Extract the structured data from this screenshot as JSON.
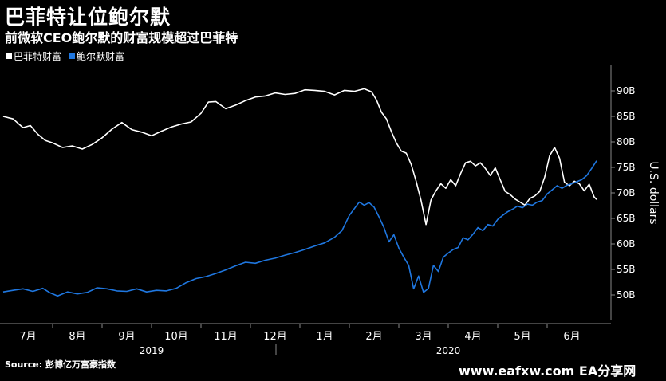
{
  "header": {
    "title": "巴菲特让位鲍尔默",
    "subtitle": "前微软CEO鲍尔默的财富规模超过巴菲特"
  },
  "legend": [
    {
      "label": "巴菲特财富",
      "color": "#ffffff"
    },
    {
      "label": "鲍尔默财富",
      "color": "#1f77e0"
    }
  ],
  "footer": {
    "source": "Source: 彭博亿万富豪指数",
    "watermark": "www.eafxw.com   EA分享网"
  },
  "chart_data": {
    "type": "line",
    "ylabel": "U.S. dollars",
    "ylim": [
      45,
      95
    ],
    "yticks": [
      50,
      55,
      60,
      65,
      70,
      75,
      80,
      85,
      90
    ],
    "ytick_labels": [
      "50B",
      "55B",
      "60B",
      "65B",
      "70B",
      "75B",
      "80B",
      "85B",
      "90B"
    ],
    "xlim": [
      0,
      12.0
    ],
    "month_labels": [
      "7月",
      "8月",
      "9月",
      "10月",
      "11月",
      "12月",
      "1月",
      "2月",
      "3月",
      "4月",
      "5月",
      "6月"
    ],
    "year_labels": [
      {
        "label": "2019",
        "at": 3.0
      },
      {
        "label": "2020",
        "at": 9.0
      }
    ],
    "series": [
      {
        "name": "巴菲特财富",
        "color": "#ffffff",
        "points": [
          [
            0.0,
            85
          ],
          [
            0.2,
            84.5
          ],
          [
            0.4,
            82.8
          ],
          [
            0.55,
            83.2
          ],
          [
            0.7,
            81.5
          ],
          [
            0.85,
            80.3
          ],
          [
            1.0,
            79.8
          ],
          [
            1.2,
            78.9
          ],
          [
            1.4,
            79.2
          ],
          [
            1.6,
            78.6
          ],
          [
            1.8,
            79.5
          ],
          [
            2.0,
            80.8
          ],
          [
            2.2,
            82.5
          ],
          [
            2.4,
            83.8
          ],
          [
            2.6,
            82.4
          ],
          [
            2.8,
            81.9
          ],
          [
            3.0,
            81.2
          ],
          [
            3.2,
            82.1
          ],
          [
            3.4,
            82.9
          ],
          [
            3.6,
            83.5
          ],
          [
            3.8,
            83.9
          ],
          [
            4.0,
            85.6
          ],
          [
            4.15,
            87.8
          ],
          [
            4.3,
            87.9
          ],
          [
            4.5,
            86.5
          ],
          [
            4.7,
            87.2
          ],
          [
            4.9,
            88.1
          ],
          [
            5.1,
            88.8
          ],
          [
            5.3,
            89.0
          ],
          [
            5.5,
            89.6
          ],
          [
            5.7,
            89.3
          ],
          [
            5.9,
            89.5
          ],
          [
            6.1,
            90.2
          ],
          [
            6.3,
            90.1
          ],
          [
            6.5,
            89.9
          ],
          [
            6.7,
            89.2
          ],
          [
            6.9,
            90.1
          ],
          [
            7.1,
            89.9
          ],
          [
            7.3,
            90.4
          ],
          [
            7.45,
            89.8
          ],
          [
            7.55,
            88.2
          ],
          [
            7.65,
            85.8
          ],
          [
            7.75,
            84.5
          ],
          [
            7.85,
            82.0
          ],
          [
            7.95,
            79.8
          ],
          [
            8.05,
            78.2
          ],
          [
            8.15,
            77.8
          ],
          [
            8.25,
            75.6
          ],
          [
            8.35,
            72.3
          ],
          [
            8.45,
            68.5
          ],
          [
            8.55,
            63.8
          ],
          [
            8.65,
            68.6
          ],
          [
            8.75,
            70.4
          ],
          [
            8.85,
            71.8
          ],
          [
            8.95,
            70.9
          ],
          [
            9.05,
            72.6
          ],
          [
            9.15,
            71.4
          ],
          [
            9.25,
            73.8
          ],
          [
            9.35,
            75.9
          ],
          [
            9.45,
            76.2
          ],
          [
            9.55,
            75.3
          ],
          [
            9.65,
            75.9
          ],
          [
            9.75,
            74.8
          ],
          [
            9.85,
            73.4
          ],
          [
            9.95,
            74.9
          ],
          [
            10.05,
            72.6
          ],
          [
            10.15,
            70.3
          ],
          [
            10.25,
            69.7
          ],
          [
            10.35,
            68.8
          ],
          [
            10.45,
            68.2
          ],
          [
            10.55,
            67.6
          ],
          [
            10.65,
            68.9
          ],
          [
            10.75,
            69.4
          ],
          [
            10.85,
            70.3
          ],
          [
            10.95,
            73.1
          ],
          [
            11.05,
            77.3
          ],
          [
            11.15,
            78.9
          ],
          [
            11.25,
            76.8
          ],
          [
            11.35,
            72.1
          ],
          [
            11.45,
            71.4
          ],
          [
            11.55,
            72.3
          ],
          [
            11.65,
            71.8
          ],
          [
            11.75,
            70.4
          ],
          [
            11.85,
            71.7
          ],
          [
            11.95,
            69.2
          ],
          [
            12.0,
            68.7
          ]
        ]
      },
      {
        "name": "鲍尔默财富",
        "color": "#1f77e0",
        "points": [
          [
            0.0,
            50.6
          ],
          [
            0.2,
            50.9
          ],
          [
            0.4,
            51.2
          ],
          [
            0.6,
            50.7
          ],
          [
            0.8,
            51.3
          ],
          [
            0.95,
            50.4
          ],
          [
            1.1,
            49.8
          ],
          [
            1.3,
            50.6
          ],
          [
            1.5,
            50.2
          ],
          [
            1.7,
            50.5
          ],
          [
            1.9,
            51.4
          ],
          [
            2.1,
            51.2
          ],
          [
            2.3,
            50.8
          ],
          [
            2.5,
            50.7
          ],
          [
            2.7,
            51.2
          ],
          [
            2.9,
            50.6
          ],
          [
            3.1,
            50.9
          ],
          [
            3.3,
            50.8
          ],
          [
            3.5,
            51.3
          ],
          [
            3.7,
            52.4
          ],
          [
            3.9,
            53.2
          ],
          [
            4.1,
            53.6
          ],
          [
            4.3,
            54.2
          ],
          [
            4.5,
            54.9
          ],
          [
            4.7,
            55.7
          ],
          [
            4.9,
            56.4
          ],
          [
            5.1,
            56.2
          ],
          [
            5.3,
            56.8
          ],
          [
            5.5,
            57.2
          ],
          [
            5.7,
            57.8
          ],
          [
            5.9,
            58.3
          ],
          [
            6.1,
            58.9
          ],
          [
            6.3,
            59.6
          ],
          [
            6.5,
            60.2
          ],
          [
            6.7,
            61.3
          ],
          [
            6.85,
            62.6
          ],
          [
            7.0,
            65.6
          ],
          [
            7.1,
            66.9
          ],
          [
            7.2,
            68.2
          ],
          [
            7.3,
            67.6
          ],
          [
            7.4,
            68.1
          ],
          [
            7.5,
            67.2
          ],
          [
            7.6,
            65.3
          ],
          [
            7.7,
            63.2
          ],
          [
            7.8,
            60.4
          ],
          [
            7.9,
            61.8
          ],
          [
            8.0,
            59.2
          ],
          [
            8.1,
            57.4
          ],
          [
            8.2,
            55.8
          ],
          [
            8.3,
            51.2
          ],
          [
            8.4,
            53.7
          ],
          [
            8.5,
            50.5
          ],
          [
            8.6,
            51.3
          ],
          [
            8.7,
            55.8
          ],
          [
            8.8,
            54.6
          ],
          [
            8.9,
            57.4
          ],
          [
            9.0,
            58.2
          ],
          [
            9.1,
            58.9
          ],
          [
            9.2,
            59.3
          ],
          [
            9.3,
            61.2
          ],
          [
            9.4,
            60.8
          ],
          [
            9.5,
            61.9
          ],
          [
            9.6,
            63.2
          ],
          [
            9.7,
            62.6
          ],
          [
            9.8,
            63.8
          ],
          [
            9.9,
            63.5
          ],
          [
            10.0,
            64.8
          ],
          [
            10.1,
            65.6
          ],
          [
            10.2,
            66.3
          ],
          [
            10.3,
            66.8
          ],
          [
            10.4,
            67.4
          ],
          [
            10.5,
            67.1
          ],
          [
            10.6,
            67.8
          ],
          [
            10.7,
            67.6
          ],
          [
            10.8,
            68.2
          ],
          [
            10.9,
            68.5
          ],
          [
            11.0,
            69.8
          ],
          [
            11.1,
            70.6
          ],
          [
            11.2,
            71.4
          ],
          [
            11.3,
            70.9
          ],
          [
            11.4,
            71.5
          ],
          [
            11.5,
            71.8
          ],
          [
            11.6,
            72.2
          ],
          [
            11.7,
            72.6
          ],
          [
            11.8,
            73.4
          ],
          [
            11.9,
            74.8
          ],
          [
            12.0,
            76.3
          ]
        ]
      }
    ],
    "grid": false,
    "legend_position": "top-left"
  }
}
